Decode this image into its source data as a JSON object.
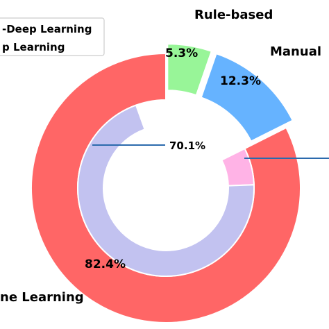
{
  "chart_data": {
    "type": "pie",
    "outer_ring": {
      "slices": [
        {
          "key": "rule",
          "label": "Rule-based",
          "value": 5.3,
          "value_label": "5.3%",
          "color": "#98f598",
          "exploded": true
        },
        {
          "key": "manual",
          "label": "Manual",
          "value": 12.3,
          "value_label": "12.3%",
          "color": "#66b3ff",
          "exploded": true
        },
        {
          "key": "machine",
          "label": "ne Learning",
          "value": 82.4,
          "value_label": "82.4%",
          "color": "#ff6666",
          "exploded": false
        }
      ]
    },
    "inner_ring": {
      "slices": [
        {
          "key": "non_deep",
          "value": 6.8,
          "color": "#ffb3e6"
        },
        {
          "key": "deep",
          "value": 70.1,
          "value_label": "70.1%",
          "color": "#c2c2f0"
        }
      ]
    },
    "legend": {
      "position": "top-left",
      "entries": [
        "-Deep Learning",
        "p Learning"
      ]
    },
    "annotation_line_color": "#2b6aad"
  }
}
